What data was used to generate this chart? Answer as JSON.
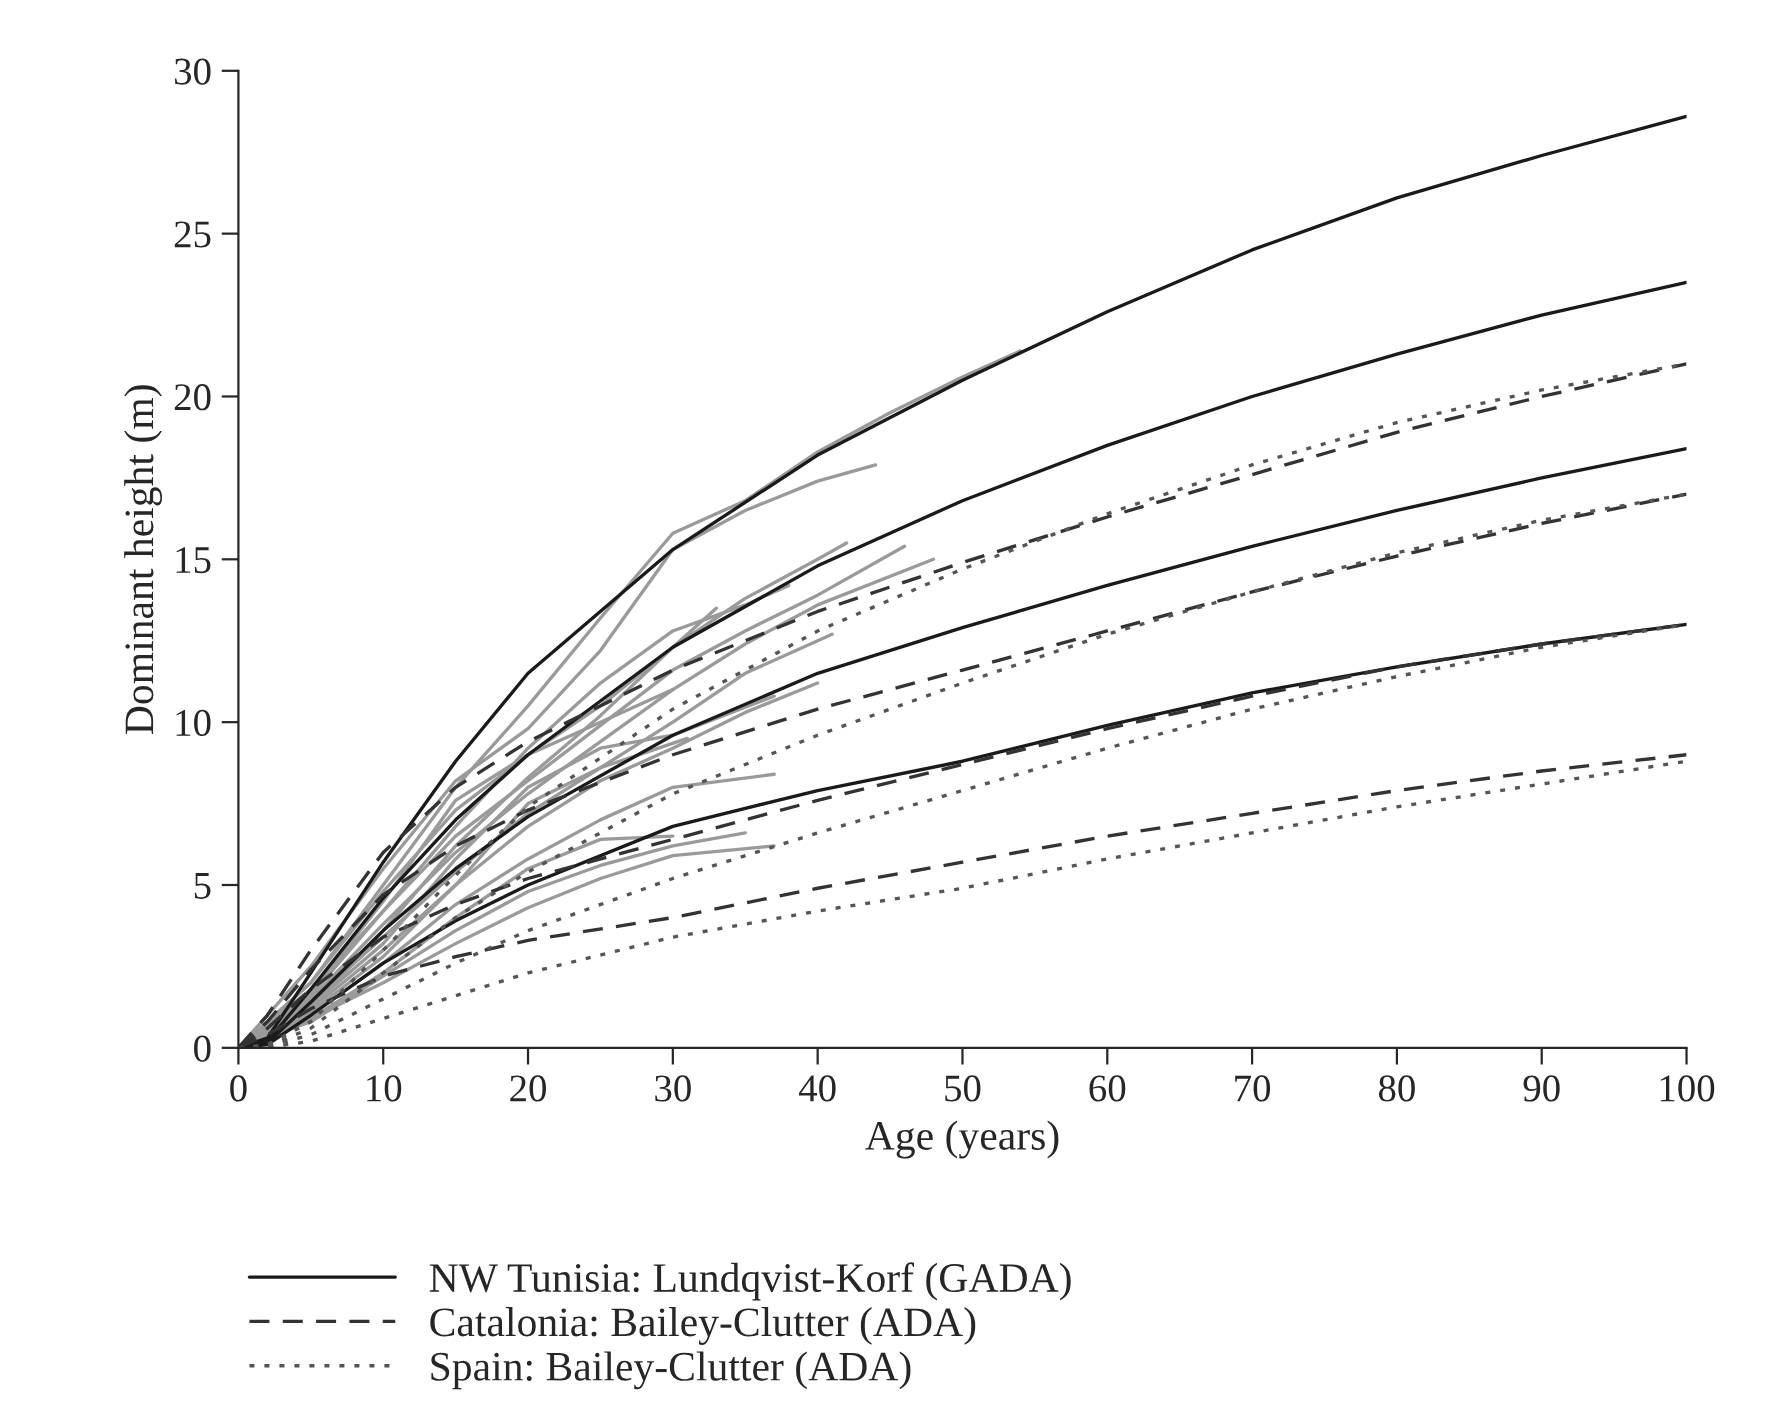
{
  "chart_data": {
    "type": "line",
    "xlabel": "Age (years)",
    "ylabel": "Dominant height (m)",
    "xlim": [
      0,
      100
    ],
    "xticks": [
      0,
      10,
      20,
      30,
      40,
      50,
      60,
      70,
      80,
      90,
      100
    ],
    "ylim": [
      0,
      30
    ],
    "yticks": [
      0,
      5,
      10,
      15,
      20,
      25,
      30
    ],
    "grid": false,
    "legend": "bottom",
    "marker": "none",
    "series": [
      {
        "color": "#9a9a9a",
        "line_style": "solid",
        "x": [
          0,
          5,
          10,
          15,
          20,
          25,
          30,
          35,
          40,
          45,
          50,
          54
        ],
        "values": [
          0,
          2,
          5,
          8,
          10.5,
          13.2,
          15.8,
          16.8,
          18.3,
          19.5,
          20.6,
          21.4
        ]
      },
      {
        "color": "#9a9a9a",
        "line_style": "solid",
        "x": [
          0,
          5,
          10,
          15,
          20,
          25,
          30,
          35,
          40,
          44
        ],
        "values": [
          0,
          2.5,
          5.5,
          8.2,
          9.8,
          12.2,
          15.3,
          16.5,
          17.4,
          17.9
        ]
      },
      {
        "color": "#9a9a9a",
        "line_style": "solid",
        "x": [
          0,
          5,
          10,
          15,
          20,
          25,
          30,
          35,
          40,
          42
        ],
        "values": [
          0,
          2,
          4.8,
          7.3,
          9,
          10.5,
          12.3,
          13.8,
          15,
          15.5
        ]
      },
      {
        "color": "#9a9a9a",
        "line_style": "solid",
        "x": [
          0,
          5,
          10,
          15,
          20,
          25,
          30,
          35,
          40,
          46
        ],
        "values": [
          0,
          1.8,
          4.2,
          6.5,
          8.2,
          9.9,
          11.6,
          12.8,
          13.9,
          15.4
        ]
      },
      {
        "color": "#9a9a9a",
        "line_style": "solid",
        "x": [
          0,
          5,
          10,
          15,
          20,
          25,
          30,
          35,
          40,
          48
        ],
        "values": [
          0,
          1.5,
          3.8,
          6,
          7.8,
          9.4,
          11,
          12.4,
          13.6,
          15.0
        ]
      },
      {
        "color": "#9a9a9a",
        "line_style": "solid",
        "x": [
          0,
          5,
          10,
          15,
          20,
          25,
          30,
          35,
          41
        ],
        "values": [
          0,
          1.4,
          3.4,
          5.4,
          7.2,
          8.6,
          10,
          11.5,
          12.7
        ]
      },
      {
        "color": "#9a9a9a",
        "line_style": "solid",
        "x": [
          0,
          5,
          10,
          15,
          20,
          25,
          30,
          35,
          40
        ],
        "values": [
          0,
          1.2,
          3,
          5,
          6.8,
          8.2,
          9.2,
          10.3,
          11.2
        ]
      },
      {
        "color": "#9a9a9a",
        "line_style": "solid",
        "x": [
          0,
          5,
          10,
          15,
          20,
          25,
          30,
          37
        ],
        "values": [
          0,
          1.3,
          3.2,
          5.8,
          8.0,
          9.2,
          9.6,
          10.8
        ]
      },
      {
        "color": "#9a9a9a",
        "line_style": "solid",
        "x": [
          0,
          5,
          10,
          15,
          20,
          25,
          30,
          37
        ],
        "values": [
          0,
          1,
          2.6,
          4.4,
          5.8,
          7,
          8,
          8.4
        ]
      },
      {
        "color": "#9a9a9a",
        "line_style": "solid",
        "x": [
          0,
          5,
          10,
          15,
          20,
          25,
          31
        ],
        "values": [
          0,
          1.1,
          2.8,
          5,
          7.5,
          8.6,
          9.5
        ]
      },
      {
        "color": "#9a9a9a",
        "line_style": "solid",
        "x": [
          0,
          5,
          10,
          15,
          20,
          25,
          30,
          35
        ],
        "values": [
          0,
          0.8,
          2.2,
          3.6,
          4.8,
          5.6,
          6.2,
          6.6
        ]
      },
      {
        "color": "#9a9a9a",
        "line_style": "solid",
        "x": [
          0,
          5,
          10,
          15,
          20,
          25,
          30
        ],
        "values": [
          0,
          0.9,
          2.3,
          4,
          5.5,
          6.4,
          6.5
        ]
      },
      {
        "color": "#9a9a9a",
        "line_style": "solid",
        "x": [
          0,
          5,
          10,
          15,
          20,
          25,
          30,
          33
        ],
        "values": [
          0,
          1.2,
          3.6,
          6.2,
          8.3,
          10.2,
          12.3,
          13.5
        ]
      },
      {
        "color": "#9a9a9a",
        "line_style": "solid",
        "x": [
          0,
          5,
          10,
          15,
          20,
          25,
          30,
          35,
          38
        ],
        "values": [
          0,
          1.6,
          4.2,
          6.8,
          9.2,
          11.2,
          12.8,
          13.6,
          14.2
        ]
      },
      {
        "color": "#9a9a9a",
        "line_style": "solid",
        "x": [
          0,
          5,
          10,
          15,
          20,
          25,
          30
        ],
        "values": [
          0,
          1.7,
          4.5,
          7.6,
          9,
          10,
          11
        ]
      },
      {
        "color": "#9a9a9a",
        "line_style": "solid",
        "x": [
          0,
          5,
          10,
          15,
          20,
          25,
          30,
          37
        ],
        "values": [
          0,
          0.9,
          2,
          3.2,
          4.3,
          5.2,
          5.9,
          6.2
        ]
      },
      {
        "name": "NW Tunisia: Lundqvist-Korf (GADA)",
        "color": "#1a1a1a",
        "line_style": "solid",
        "x": [
          0,
          2,
          5,
          10,
          15,
          20,
          30,
          40,
          50,
          60,
          70,
          80,
          90,
          100
        ],
        "values": [
          0,
          0.3,
          2.3,
          5.7,
          8.8,
          11.5,
          15.3,
          18.2,
          20.5,
          22.6,
          24.5,
          26.1,
          27.4,
          28.6
        ]
      },
      {
        "color": "#1a1a1a",
        "line_style": "solid",
        "x": [
          0,
          2,
          5,
          10,
          15,
          20,
          30,
          40,
          50,
          60,
          70,
          80,
          90,
          100
        ],
        "values": [
          0,
          0.2,
          1.8,
          4.6,
          7.0,
          9.0,
          12.3,
          14.8,
          16.8,
          18.5,
          20.0,
          21.3,
          22.5,
          23.5
        ]
      },
      {
        "color": "#1a1a1a",
        "line_style": "solid",
        "x": [
          0,
          2,
          5,
          10,
          15,
          20,
          30,
          40,
          50,
          60,
          70,
          80,
          90,
          100
        ],
        "values": [
          0,
          0.15,
          1.4,
          3.6,
          5.5,
          7.1,
          9.6,
          11.5,
          12.9,
          14.2,
          15.4,
          16.5,
          17.5,
          18.4
        ]
      },
      {
        "color": "#1a1a1a",
        "line_style": "solid",
        "x": [
          0,
          2,
          5,
          10,
          15,
          20,
          30,
          40,
          50,
          60,
          70,
          80,
          90,
          100
        ],
        "values": [
          0,
          0.1,
          1.0,
          2.6,
          3.9,
          5.0,
          6.8,
          7.9,
          8.8,
          9.9,
          10.9,
          11.7,
          12.4,
          13.0
        ]
      },
      {
        "name": "Catalonia: Bailey-Clutter (ADA)",
        "color": "#333333",
        "line_style": "dashed",
        "x": [
          0,
          2,
          5,
          10,
          15,
          20,
          30,
          40,
          50,
          60,
          70,
          80,
          90,
          100
        ],
        "values": [
          0,
          1.0,
          3.0,
          6.0,
          8.0,
          9.4,
          11.6,
          13.4,
          14.9,
          16.3,
          17.6,
          18.9,
          20.0,
          21.0
        ]
      },
      {
        "color": "#333333",
        "line_style": "dashed",
        "x": [
          0,
          2,
          5,
          10,
          15,
          20,
          30,
          40,
          50,
          60,
          70,
          80,
          90,
          100
        ],
        "values": [
          0,
          0.8,
          2.4,
          4.7,
          6.2,
          7.3,
          9.0,
          10.4,
          11.6,
          12.8,
          14.0,
          15.1,
          16.1,
          17.0
        ]
      },
      {
        "color": "#333333",
        "line_style": "dashed",
        "x": [
          0,
          2,
          5,
          10,
          15,
          20,
          30,
          40,
          50,
          60,
          70,
          80,
          90,
          100
        ],
        "values": [
          0,
          0.6,
          1.8,
          3.4,
          4.4,
          5.2,
          6.4,
          7.6,
          8.7,
          9.8,
          10.8,
          11.7,
          12.4,
          13.0
        ]
      },
      {
        "color": "#333333",
        "line_style": "dashed",
        "x": [
          0,
          2,
          5,
          10,
          15,
          20,
          30,
          40,
          50,
          60,
          70,
          80,
          90,
          100
        ],
        "values": [
          0,
          0.4,
          1.2,
          2.2,
          2.8,
          3.3,
          4.0,
          4.9,
          5.7,
          6.5,
          7.2,
          7.9,
          8.5,
          9.0
        ]
      },
      {
        "name": "Spain: Bailey-Clutter (ADA)",
        "color": "#555555",
        "line_style": "dotted",
        "x": [
          0,
          2,
          5,
          10,
          15,
          20,
          30,
          40,
          50,
          60,
          70,
          80,
          90,
          100
        ],
        "values": [
          0,
          0.1,
          0.8,
          3.0,
          5.3,
          7.4,
          10.4,
          12.8,
          14.7,
          16.4,
          17.9,
          19.2,
          20.2,
          21.0
        ]
      },
      {
        "color": "#555555",
        "line_style": "dotted",
        "x": [
          0,
          2,
          5,
          10,
          15,
          20,
          30,
          40,
          50,
          60,
          70,
          80,
          90,
          100
        ],
        "values": [
          0,
          0.05,
          0.6,
          2.3,
          4.0,
          5.4,
          7.8,
          9.6,
          11.2,
          12.7,
          14.0,
          15.2,
          16.2,
          17.0
        ]
      },
      {
        "color": "#555555",
        "line_style": "dotted",
        "x": [
          0,
          2,
          5,
          10,
          15,
          20,
          30,
          40,
          50,
          60,
          70,
          80,
          90,
          100
        ],
        "values": [
          0,
          0.04,
          0.4,
          1.5,
          2.6,
          3.6,
          5.2,
          6.6,
          7.9,
          9.2,
          10.4,
          11.4,
          12.3,
          13.0
        ]
      },
      {
        "color": "#555555",
        "line_style": "dotted",
        "x": [
          0,
          2,
          5,
          10,
          15,
          20,
          30,
          40,
          50,
          60,
          70,
          80,
          90,
          100
        ],
        "values": [
          0,
          0.02,
          0.2,
          0.9,
          1.6,
          2.3,
          3.4,
          4.2,
          4.9,
          5.8,
          6.6,
          7.4,
          8.1,
          8.8
        ]
      }
    ]
  }
}
